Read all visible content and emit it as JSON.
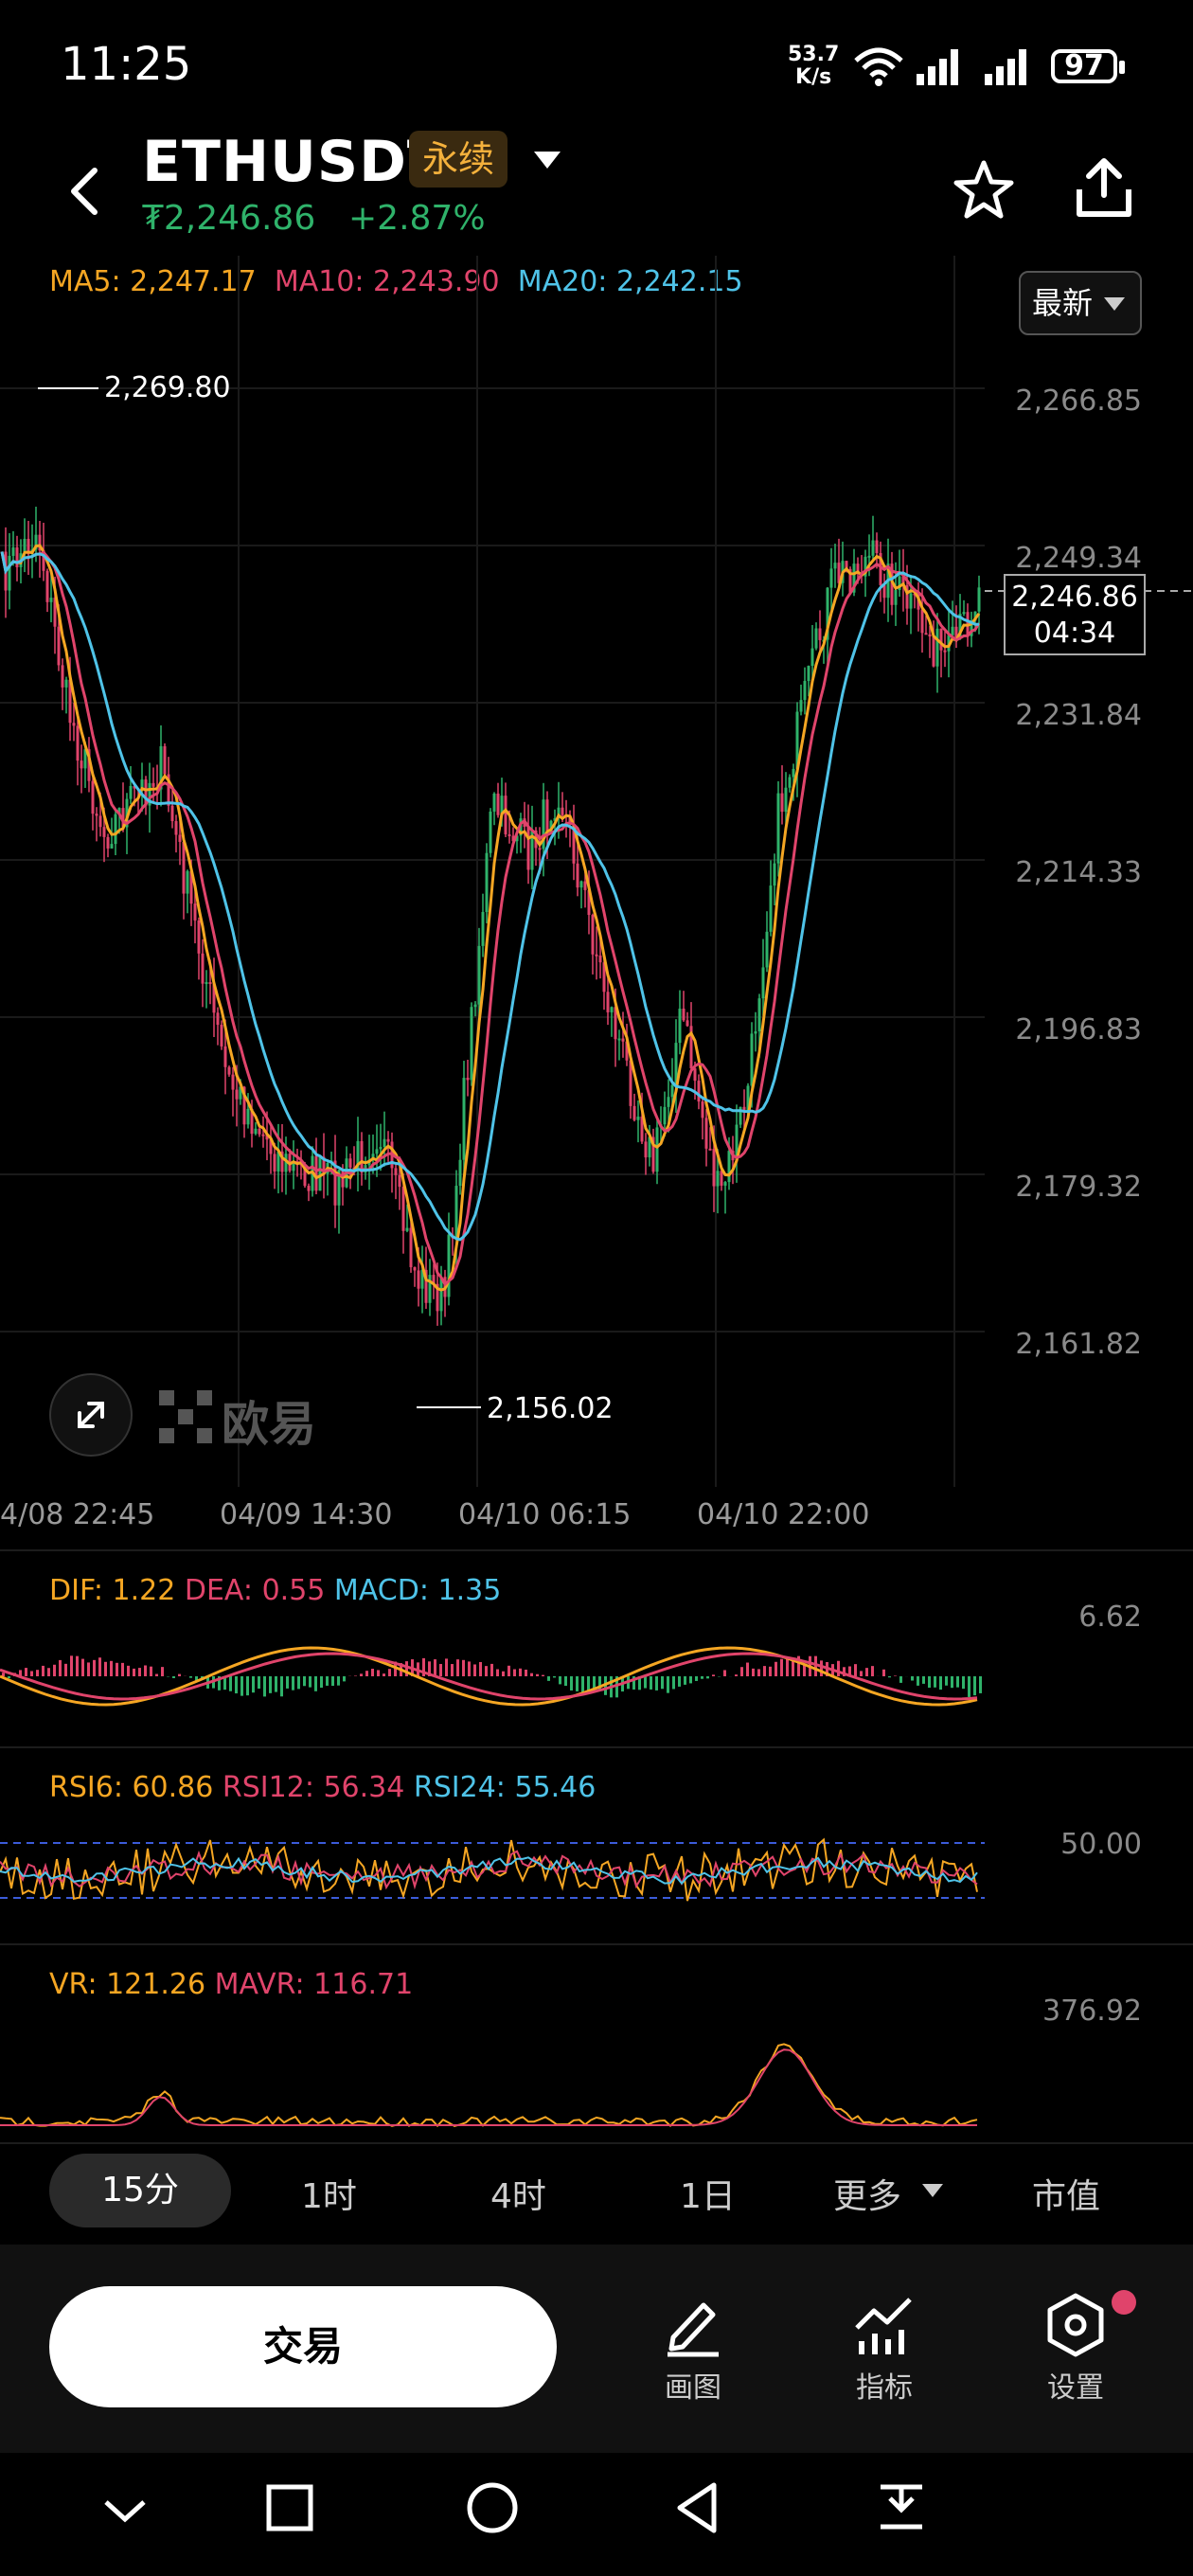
{
  "status_bar": {
    "time": "11:25",
    "net_speed": "53.7",
    "net_unit": "K/s",
    "battery": "97"
  },
  "header": {
    "symbol": "ETHUSDT",
    "badge": "永续",
    "price": "₮2,246.86",
    "change": "+2.87%"
  },
  "ma": {
    "ma5": "MA5: 2,247.17",
    "ma10": "MA10: 2,243.90",
    "ma20": "MA20: 2,242.15"
  },
  "latest_button": "最新",
  "price_axis": [
    "2,266.85",
    "2,249.34",
    "2,231.84",
    "2,214.33",
    "2,196.83",
    "2,179.32",
    "2,161.82"
  ],
  "current_price": {
    "price": "2,246.86",
    "countdown": "04:34"
  },
  "annotations": {
    "high": "2,269.80",
    "low": "2,156.02"
  },
  "watermark": "欧易",
  "time_axis": [
    "4/08 22:45",
    "04/09 14:30",
    "04/10 06:15",
    "04/10 22:00"
  ],
  "macd": {
    "dif": "DIF: 1.22",
    "dea": "DEA: 0.55",
    "macd": "MACD: 1.35",
    "max": "6.62"
  },
  "rsi": {
    "rsi6": "RSI6: 60.86",
    "rsi12": "RSI12: 56.34",
    "rsi24": "RSI24: 55.46",
    "mid": "50.00"
  },
  "vr": {
    "vr": "VR: 121.26",
    "mavr": "MAVR: 116.71",
    "max": "376.92"
  },
  "timeframes": {
    "m15": "15分",
    "h1": "1时",
    "h4": "4时",
    "d1": "1日",
    "more": "更多",
    "mcap": "市值"
  },
  "bottom": {
    "trade": "交易",
    "draw": "画图",
    "indicators": "指标",
    "settings": "设置"
  },
  "colors": {
    "up": "#2fb26a",
    "down": "#e0446b",
    "ma5": "#f5a623",
    "ma10": "#e0446b",
    "ma20": "#4fc3e8"
  }
}
